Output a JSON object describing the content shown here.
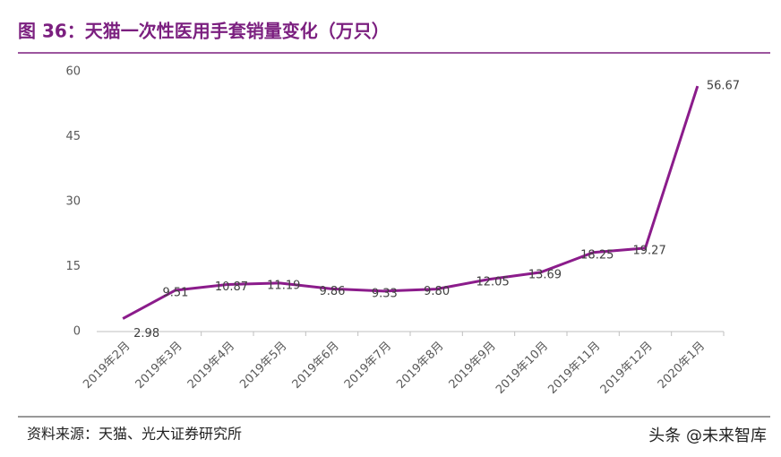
{
  "chart_data": {
    "type": "line",
    "title": "图 36：天猫一次性医用手套销量变化（万只）",
    "categories": [
      "2019年2月",
      "2019年3月",
      "2019年4月",
      "2019年5月",
      "2019年6月",
      "2019年7月",
      "2019年8月",
      "2019年9月",
      "2019年10月",
      "2019年11月",
      "2019年12月",
      "2020年1月"
    ],
    "values": [
      2.98,
      9.51,
      10.87,
      11.19,
      9.86,
      9.33,
      9.8,
      12.05,
      13.69,
      18.25,
      19.27,
      56.67
    ],
    "value_labels": [
      "2.98",
      "9.51",
      "10.87",
      "11.19",
      "9.86",
      "9.33",
      "9.80",
      "12.05",
      "13.69",
      "18.25",
      "19.27",
      "56.67"
    ],
    "color": "#8b1c8b",
    "ylim": [
      0,
      60
    ],
    "yticks": [
      0,
      15,
      30,
      45,
      60
    ],
    "grid": false,
    "source": "资料来源：天猫、光大证券研究所",
    "watermark": "头条 @未来智库"
  }
}
